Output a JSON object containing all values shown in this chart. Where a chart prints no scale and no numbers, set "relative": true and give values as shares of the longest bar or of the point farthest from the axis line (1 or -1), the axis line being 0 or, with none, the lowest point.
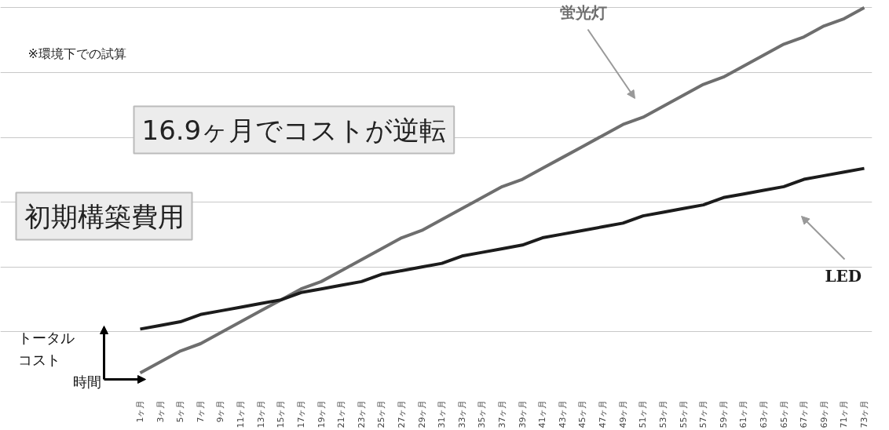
{
  "chart_data": {
    "type": "line",
    "relative": true,
    "grid": true,
    "tick_labels": "x",
    "legend": false,
    "marker": "none",
    "line_style": "solid",
    "xlabel": "時間",
    "ylabel": "トータルコスト",
    "categories": [
      "1ヶ月",
      "3ヶ月",
      "5ヶ月",
      "7ヶ月",
      "9ヶ月",
      "11ヶ月",
      "13ヶ月",
      "15ヶ月",
      "17ヶ月",
      "19ヶ月",
      "21ヶ月",
      "23ヶ月",
      "25ヶ月",
      "27ヶ月",
      "29ヶ月",
      "31ヶ月",
      "33ヶ月",
      "35ヶ月",
      "37ヶ月",
      "39ヶ月",
      "41ヶ月",
      "43ヶ月",
      "45ヶ月",
      "47ヶ月",
      "49ヶ月",
      "51ヶ月",
      "53ヶ月",
      "55ヶ月",
      "57ヶ月",
      "59ヶ月",
      "61ヶ月",
      "63ヶ月",
      "65ヶ月",
      "67ヶ月",
      "69ヶ月",
      "71ヶ月",
      "73ヶ月"
    ],
    "series": [
      {
        "name": "蛍光灯",
        "color": "#6e6e6e",
        "values": [
          0,
          0.03,
          0.06,
          0.08,
          0.11,
          0.14,
          0.17,
          0.2,
          0.23,
          0.25,
          0.28,
          0.31,
          0.34,
          0.37,
          0.39,
          0.42,
          0.45,
          0.48,
          0.51,
          0.53,
          0.56,
          0.59,
          0.62,
          0.65,
          0.68,
          0.7,
          0.73,
          0.76,
          0.79,
          0.81,
          0.84,
          0.87,
          0.9,
          0.92,
          0.95,
          0.97,
          1
        ]
      },
      {
        "name": "LED",
        "color": "#1c1c1c",
        "values": [
          0.12,
          0.13,
          0.14,
          0.16,
          0.17,
          0.18,
          0.19,
          0.2,
          0.22,
          0.23,
          0.24,
          0.25,
          0.27,
          0.28,
          0.29,
          0.3,
          0.32,
          0.33,
          0.34,
          0.35,
          0.37,
          0.38,
          0.39,
          0.4,
          0.41,
          0.43,
          0.44,
          0.45,
          0.46,
          0.48,
          0.49,
          0.5,
          0.51,
          0.53,
          0.54,
          0.55,
          0.56
        ]
      }
    ],
    "annotations": [
      "※環境下での試算",
      "16.9ヶ月でコストが逆転",
      "初期構築費用"
    ]
  }
}
